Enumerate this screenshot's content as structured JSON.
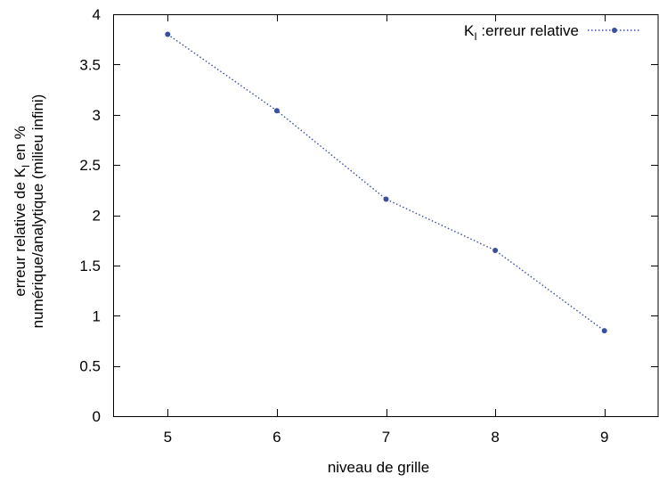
{
  "chart_data": {
    "type": "line",
    "x": [
      5,
      6,
      7,
      8,
      9
    ],
    "series": [
      {
        "name": "K_I :erreur relative",
        "values": [
          3.8,
          3.04,
          2.16,
          1.65,
          0.85
        ],
        "color": "#3a4f9e"
      }
    ],
    "xlabel": "niveau de grille",
    "ylabel_line1": "erreur relative de K_I en %",
    "ylabel_line2": "numérique/analytique (milieu infini)",
    "xlim": [
      4.5,
      9.5
    ],
    "ylim": [
      0,
      4
    ],
    "xticks": [
      5,
      6,
      7,
      8,
      9
    ],
    "yticks": [
      0,
      0.5,
      1,
      1.5,
      2,
      2.5,
      3,
      3.5,
      4
    ],
    "legend_position": "top-right",
    "grid": false,
    "line_style": "dotted"
  }
}
